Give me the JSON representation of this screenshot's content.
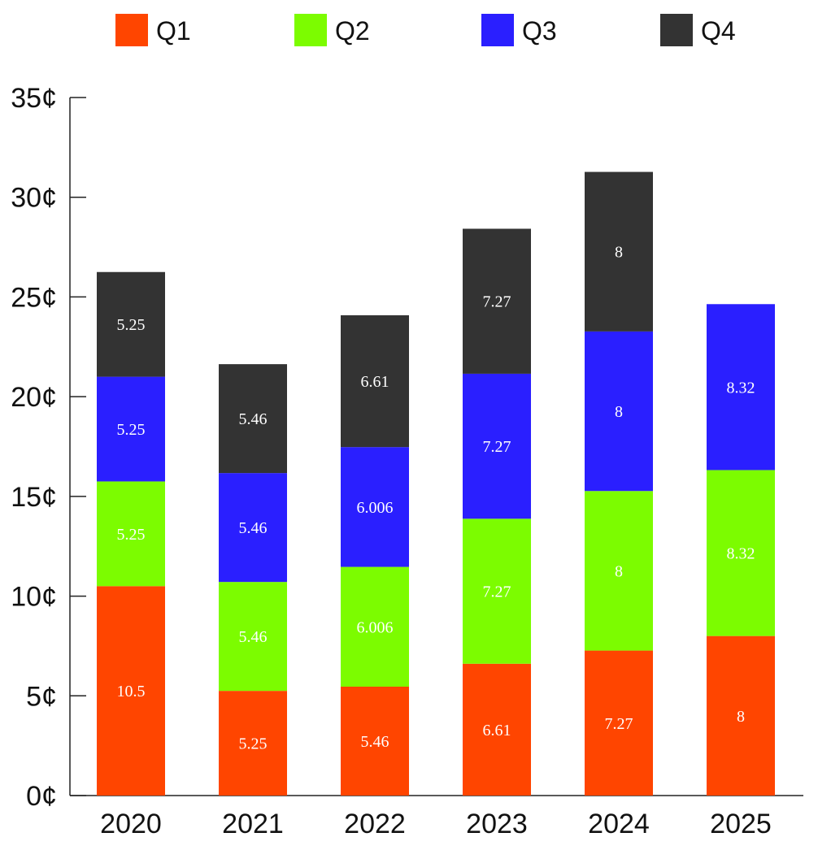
{
  "chart_data": {
    "type": "bar",
    "stacked": true,
    "title": "",
    "xlabel": "",
    "ylabel": "",
    "ylim": [
      0,
      35
    ],
    "yticks": [
      0,
      5,
      10,
      15,
      20,
      25,
      30,
      35
    ],
    "ytick_labels": [
      "0¢",
      "5¢",
      "10¢",
      "15¢",
      "20¢",
      "25¢",
      "30¢",
      "35¢"
    ],
    "categories": [
      "2020",
      "2021",
      "2022",
      "2023",
      "2024",
      "2025"
    ],
    "legend_position": "top",
    "grid": false,
    "series": [
      {
        "name": "Q1",
        "color": "#ff4500",
        "values": [
          10.5,
          5.25,
          5.46,
          6.61,
          7.27,
          8
        ],
        "labels": [
          "10.5",
          "5.25",
          "5.46",
          "6.61",
          "7.27",
          "8"
        ]
      },
      {
        "name": "Q2",
        "color": "#7cfc00",
        "values": [
          5.25,
          5.46,
          6.006,
          7.27,
          8,
          8.32
        ],
        "labels": [
          "5.25",
          "5.46",
          "6.006",
          "7.27",
          "8",
          "8.32"
        ]
      },
      {
        "name": "Q3",
        "color": "#2a1fff",
        "values": [
          5.25,
          5.46,
          6.006,
          7.27,
          8,
          8.32
        ],
        "labels": [
          "5.25",
          "5.46",
          "6.006",
          "7.27",
          "8",
          "8.32"
        ]
      },
      {
        "name": "Q4",
        "color": "#333333",
        "values": [
          5.25,
          5.46,
          6.61,
          7.27,
          8,
          null
        ],
        "labels": [
          "5.25",
          "5.46",
          "6.61",
          "7.27",
          "8",
          null
        ]
      }
    ]
  }
}
